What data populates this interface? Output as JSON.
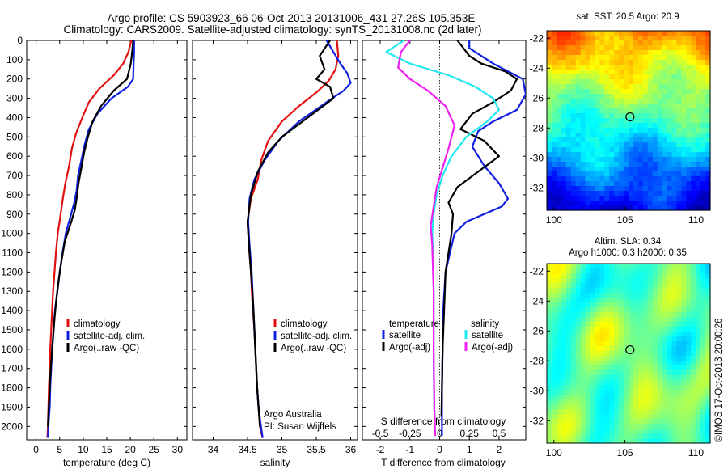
{
  "header": {
    "line1": "Argo profile: CS 5903923_66 06-Oct-2013 20131006_431 27.26S 105.353E",
    "line2": "Climatology: CARS2009. Satellite-adjusted climatology: synTS_20131008.nc (2d later)"
  },
  "colors": {
    "climatology": "#e01010",
    "satellite": "#1020e0",
    "argo": "#000000",
    "sat_salinity": "#20e8f0",
    "argo_salinity": "#f020f0"
  },
  "chart_data": [
    {
      "type": "line",
      "id": "temperature",
      "xlabel": "temperature (deg C)",
      "xlim": [
        -2,
        32
      ],
      "xticks": [
        0,
        5,
        10,
        15,
        20,
        25,
        30
      ],
      "ylim": [
        2070,
        0
      ],
      "yticks": [
        0,
        100,
        200,
        300,
        400,
        500,
        600,
        700,
        800,
        900,
        1000,
        1100,
        1200,
        1300,
        1400,
        1500,
        1600,
        1700,
        1800,
        1900,
        2000
      ],
      "legend": [
        "climatology",
        "satellite-adj. clim.",
        "Argo(..raw -QC)"
      ],
      "series": [
        {
          "name": "climatology",
          "color_key": "climatology",
          "x": [
            20.2,
            19.6,
            18.5,
            16.5,
            13.4,
            11.2,
            9.8,
            8.5,
            7.6,
            7.0,
            6.2,
            5.6,
            5.1,
            4.6,
            4.2,
            3.9,
            3.6,
            3.4,
            3.2,
            3.0,
            2.9,
            2.7,
            2.6,
            2.5,
            2.4
          ],
          "y": [
            0,
            60,
            120,
            180,
            250,
            320,
            400,
            480,
            560,
            650,
            740,
            830,
            920,
            1000,
            1100,
            1200,
            1300,
            1400,
            1500,
            1600,
            1700,
            1800,
            1900,
            2000,
            2060
          ]
        },
        {
          "name": "satellite-adj. clim.",
          "color_key": "satellite",
          "x": [
            20.8,
            20.8,
            20.7,
            20.6,
            19.5,
            16.0,
            13.0,
            11.2,
            10.3,
            9.6,
            8.9,
            8.6,
            8.1,
            7.2,
            6.3,
            5.6,
            5.0,
            4.5,
            4.0,
            3.7,
            3.4,
            3.2,
            3.0,
            2.9,
            2.7,
            2.6,
            2.5
          ],
          "y": [
            0,
            60,
            120,
            200,
            240,
            300,
            380,
            460,
            540,
            620,
            700,
            780,
            840,
            920,
            1000,
            1100,
            1200,
            1300,
            1400,
            1500,
            1600,
            1700,
            1800,
            1900,
            1960,
            2010,
            2060
          ]
        },
        {
          "name": "Argo(..raw -QC)",
          "color_key": "argo",
          "x": [
            20.6,
            20.4,
            20.1,
            19.3,
            16.5,
            13.8,
            12.0,
            11.0,
            10.2,
            9.6,
            9.0,
            8.6,
            8.2,
            7.2,
            6.1,
            5.4,
            4.8,
            4.3,
            3.9,
            3.6,
            3.3,
            3.0,
            2.8,
            2.6,
            2.5
          ],
          "y": [
            0,
            60,
            120,
            200,
            260,
            340,
            420,
            500,
            580,
            660,
            740,
            820,
            880,
            960,
            1040,
            1140,
            1240,
            1340,
            1440,
            1540,
            1640,
            1740,
            1840,
            1940,
            2000
          ]
        }
      ]
    },
    {
      "type": "line",
      "id": "salinity",
      "xlabel": "salinity",
      "xlim": [
        33.7,
        36.1
      ],
      "xticks": [
        34,
        34.5,
        35,
        35.5,
        36
      ],
      "xticklabels": [
        "34",
        "34.5",
        "35",
        "35.5",
        "36"
      ],
      "ylim": [
        2070,
        0
      ],
      "legend": [
        "climatology",
        "satellite-adj. clim.",
        "Argo(..raw -QC)"
      ],
      "annotation": [
        "Argo Australia",
        "PI: Susan Wijffels"
      ],
      "series": [
        {
          "name": "climatology",
          "color_key": "climatology",
          "x": [
            35.8,
            35.82,
            35.78,
            35.68,
            35.5,
            35.25,
            35.0,
            34.8,
            34.7,
            34.65,
            34.55,
            34.5,
            34.52,
            34.55,
            34.57,
            34.6,
            34.62,
            34.64,
            34.66,
            34.68,
            34.7,
            34.72
          ],
          "y": [
            0,
            80,
            150,
            210,
            270,
            340,
            420,
            520,
            620,
            720,
            820,
            940,
            1060,
            1200,
            1350,
            1500,
            1650,
            1800,
            1900,
            2000,
            2030,
            2060
          ]
        },
        {
          "name": "satellite-adj. clim.",
          "color_key": "satellite",
          "x": [
            35.65,
            35.75,
            35.85,
            35.95,
            36.0,
            35.9,
            35.65,
            35.25,
            34.95,
            34.75,
            34.6,
            34.53,
            34.51,
            34.53,
            34.56,
            34.58,
            34.6,
            34.62,
            34.64,
            34.66,
            34.68,
            34.7,
            34.72
          ],
          "y": [
            0,
            60,
            120,
            170,
            220,
            260,
            320,
            420,
            520,
            620,
            720,
            820,
            940,
            1060,
            1200,
            1350,
            1500,
            1650,
            1800,
            1900,
            1960,
            2010,
            2060
          ]
        },
        {
          "name": "Argo(..raw -QC)",
          "color_key": "argo",
          "x": [
            35.7,
            35.55,
            35.62,
            35.5,
            35.7,
            35.75,
            35.6,
            35.3,
            35.0,
            34.8,
            34.65,
            34.55,
            34.5,
            34.52,
            34.55,
            34.58,
            34.6,
            34.62,
            34.64,
            34.66,
            34.68
          ],
          "y": [
            0,
            80,
            150,
            200,
            240,
            300,
            340,
            420,
            500,
            580,
            680,
            800,
            940,
            1060,
            1200,
            1350,
            1500,
            1650,
            1800,
            1900,
            2000
          ]
        }
      ]
    },
    {
      "type": "line",
      "id": "differences",
      "xlabel": "T difference from climatology",
      "xlabel_top": "S difference from climatology",
      "xlim": [
        -2.6,
        2.9
      ],
      "xticks": [
        -2,
        -1,
        0,
        1,
        2
      ],
      "s_ticks": [
        -0.5,
        -0.25,
        0,
        0.25,
        0.5
      ],
      "s_ticklabels": [
        "-0.5",
        "-0.25",
        "0",
        "0.25",
        "0.5"
      ],
      "s_scale": 4,
      "ylim": [
        2070,
        0
      ],
      "legend_temperature_title": "temperature",
      "legend_salinity_title": "salinity",
      "legend_temperature": [
        "satellite",
        "Argo(-adj)"
      ],
      "legend_salinity": [
        "satellite",
        "Argo(-adj)"
      ],
      "series": [
        {
          "name": "satellite",
          "group": "temperature",
          "color_key": "satellite",
          "x": [
            1.0,
            1.0,
            1.4,
            1.8,
            2.3,
            2.8,
            2.9,
            2.6,
            1.8,
            1.3,
            1.1,
            1.5,
            2.0,
            2.3,
            2.1,
            1.5,
            0.9,
            0.5,
            0.35,
            0.2,
            0.12,
            0.1,
            0.08,
            0.08,
            0.08
          ],
          "y": [
            0,
            40,
            80,
            120,
            160,
            200,
            280,
            360,
            420,
            470,
            550,
            650,
            740,
            820,
            860,
            900,
            940,
            1000,
            1100,
            1200,
            1400,
            1600,
            1800,
            1950,
            2050
          ]
        },
        {
          "name": "Argo(-adj)",
          "group": "temperature",
          "color_key": "argo",
          "x": [
            0.6,
            0.8,
            1.0,
            1.4,
            2.2,
            2.6,
            2.4,
            1.8,
            1.1,
            0.7,
            1.5,
            2.0,
            1.3,
            0.6,
            0.3,
            0.45,
            0.4,
            0.3,
            0.2,
            0.15,
            0.1,
            0.08,
            0.06
          ],
          "y": [
            0,
            40,
            80,
            120,
            160,
            200,
            260,
            320,
            380,
            460,
            520,
            600,
            680,
            760,
            840,
            900,
            1000,
            1100,
            1200,
            1400,
            1600,
            1800,
            1950
          ]
        },
        {
          "name": "satellite",
          "group": "salinity",
          "color_key": "sat_salinity",
          "x": [
            -1.2,
            -1.8,
            -1.0,
            0.3,
            1.2,
            1.8,
            2.0,
            1.6,
            0.9,
            0.4,
            0.1,
            -0.1,
            -0.2,
            -0.25,
            -0.22,
            -0.2,
            -0.2,
            -0.2,
            -0.18,
            -0.15
          ],
          "y": [
            0,
            60,
            120,
            180,
            240,
            300,
            360,
            420,
            500,
            600,
            700,
            800,
            900,
            1000,
            1100,
            1300,
            1500,
            1700,
            1900,
            2050
          ]
        },
        {
          "name": "Argo(-adj)",
          "group": "salinity",
          "color_key": "argo_salinity",
          "x": [
            -1.0,
            -1.3,
            -1.4,
            -1.0,
            -0.4,
            0.2,
            0.5,
            0.3,
            0.1,
            -0.1,
            -0.2,
            -0.3,
            -0.25,
            -0.2,
            -0.2,
            -0.18,
            -0.15
          ],
          "y": [
            0,
            60,
            140,
            200,
            260,
            340,
            440,
            560,
            660,
            760,
            860,
            960,
            1060,
            1300,
            1600,
            1900,
            2050
          ]
        }
      ]
    },
    {
      "type": "heatmap",
      "id": "sst_map",
      "title": "sat. SST: 20.5 Argo: 20.9",
      "xlim": [
        99.5,
        111
      ],
      "ylim": [
        -33.5,
        -21.5
      ],
      "xticks": [
        100,
        105,
        110
      ],
      "yticks": [
        -22,
        -24,
        -26,
        -28,
        -30,
        -32
      ],
      "marker": {
        "lon": 105.353,
        "lat": -27.26
      }
    },
    {
      "type": "heatmap",
      "id": "sla_map",
      "title": [
        "Altim. SLA: 0.34",
        "Argo h1000: 0.3 h2000: 0.35"
      ],
      "xlim": [
        99.5,
        111
      ],
      "ylim": [
        -33.5,
        -21.5
      ],
      "xticks": [
        100,
        105,
        110
      ],
      "yticks": [
        -22,
        -24,
        -26,
        -28,
        -30,
        -32
      ],
      "marker": {
        "lon": 105.353,
        "lat": -27.26
      }
    }
  ],
  "footer_stamp": "©IMOS 17-Oct-2013 20:00:26"
}
